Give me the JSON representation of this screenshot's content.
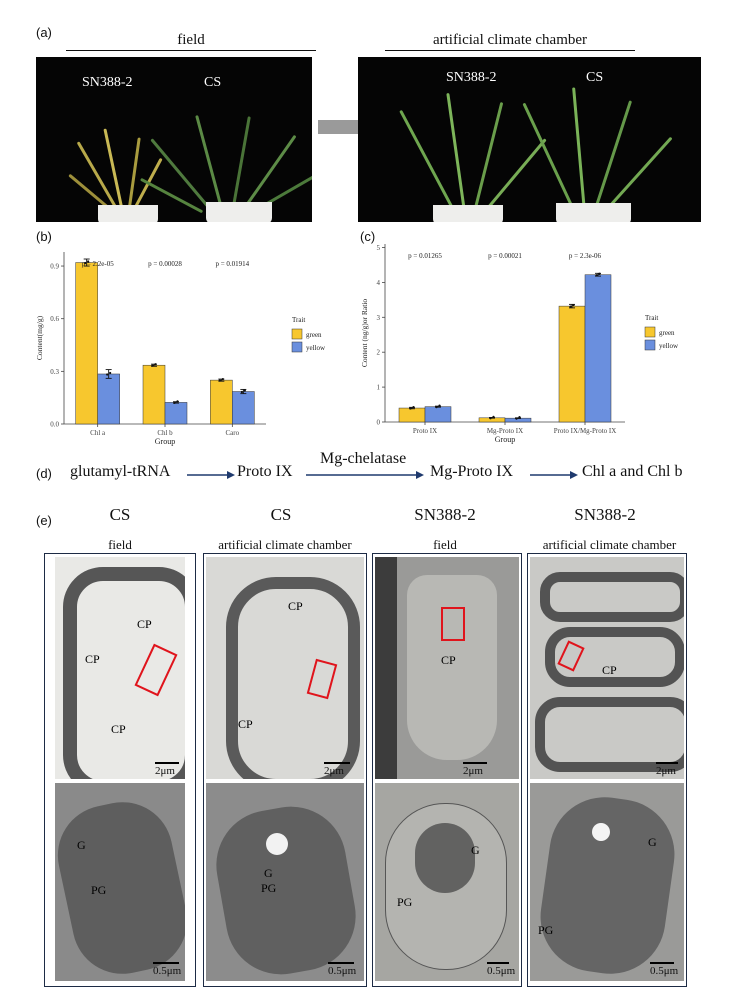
{
  "panel_labels": {
    "a": "(a)",
    "b": "(b)",
    "c": "(c)",
    "d": "(d)",
    "e": "(e)"
  },
  "panel_a": {
    "left_title": "field",
    "right_title": "artificial climate chamber",
    "left_photo_labels": [
      "SN388-2",
      "CS"
    ],
    "right_photo_labels": [
      "SN388-2",
      "CS"
    ]
  },
  "chart_data": [
    {
      "id": "b",
      "type": "bar",
      "categories": [
        "Chl a",
        "Chl b",
        "Caro"
      ],
      "series": [
        {
          "name": "green",
          "color": "#f7c72e",
          "values": [
            0.92,
            0.335,
            0.25
          ],
          "errors": [
            0.02,
            0.006,
            0.006
          ]
        },
        {
          "name": "yellow",
          "color": "#6a8fde",
          "values": [
            0.285,
            0.123,
            0.185
          ],
          "errors": [
            0.025,
            0.004,
            0.012
          ]
        }
      ],
      "pvalues": [
        "p = 2.2e-05",
        "p = 0.00028",
        "p = 0.01914"
      ],
      "xlabel": "Group",
      "ylabel": "Content(mg/g)",
      "yticks": [
        0.0,
        0.3,
        0.6,
        0.9
      ],
      "ytick_labels": [
        "0.0",
        "0.3",
        "0.6",
        "0.9"
      ],
      "ylim": [
        0,
        0.98
      ],
      "legend_title": "Trait",
      "legend_position": "right"
    },
    {
      "id": "c",
      "type": "bar",
      "categories": [
        "Proto IX",
        "Mg-Proto IX",
        "Proto IX/Mg-Proto IX"
      ],
      "series": [
        {
          "name": "green",
          "color": "#f7c72e",
          "values": [
            0.4,
            0.12,
            3.32
          ],
          "errors": [
            0.02,
            0.01,
            0.05
          ]
        },
        {
          "name": "yellow",
          "color": "#6a8fde",
          "values": [
            0.44,
            0.11,
            4.22
          ],
          "errors": [
            0.015,
            0.01,
            0.04
          ]
        }
      ],
      "pvalues": [
        "p = 0.01265",
        "p = 0.00021",
        "p = 2.3e-06"
      ],
      "xlabel": "Group",
      "ylabel": "Content (ng/g)or Ratio",
      "yticks": [
        0,
        1,
        2,
        3,
        4,
        5
      ],
      "ytick_labels": [
        "0",
        "1",
        "2",
        "3",
        "4",
        "5"
      ],
      "ylim": [
        0,
        5.1
      ],
      "legend_title": "Trait",
      "legend_position": "right"
    }
  ],
  "pathway": {
    "steps": [
      "glutamyl-tRNA",
      "Proto IX",
      "Mg-Proto IX",
      "Chl a and Chl b"
    ],
    "enzyme": "Mg-chelatase"
  },
  "panel_e": {
    "columns": [
      {
        "genotype": "CS",
        "condition": "field",
        "top_labels": [
          "CP",
          "CP",
          "CP"
        ],
        "top_scale": "2μm",
        "bottom_labels": [
          "G",
          "PG"
        ],
        "bottom_scale": "0.5μm"
      },
      {
        "genotype": "CS",
        "condition": "artificial climate chamber",
        "top_labels": [
          "CP",
          "CP"
        ],
        "top_scale": "2μm",
        "bottom_labels": [
          "G",
          "PG"
        ],
        "bottom_scale": "0.5μm"
      },
      {
        "genotype": "SN388-2",
        "condition": "field",
        "top_labels": [
          "CP"
        ],
        "top_scale": "2μm",
        "bottom_labels": [
          "G",
          "PG"
        ],
        "bottom_scale": "0.5μm"
      },
      {
        "genotype": "SN388-2",
        "condition": "artificial climate chamber",
        "top_labels": [
          "CP"
        ],
        "top_scale": "2μm",
        "bottom_labels": [
          "G",
          "PG"
        ],
        "bottom_scale": "0.5μm"
      }
    ]
  }
}
